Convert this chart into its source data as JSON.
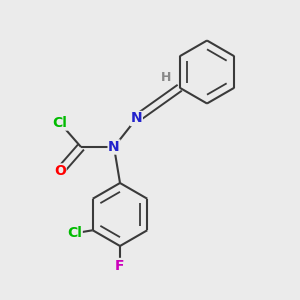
{
  "background_color": "#ebebeb",
  "bond_color": "#3a3a3a",
  "atom_colors": {
    "Cl": "#00bb00",
    "O": "#ff0000",
    "N": "#2222cc",
    "F": "#cc00bb",
    "H": "#888888",
    "C": "#3a3a3a"
  },
  "figsize": [
    3.0,
    3.0
  ],
  "dpi": 100
}
